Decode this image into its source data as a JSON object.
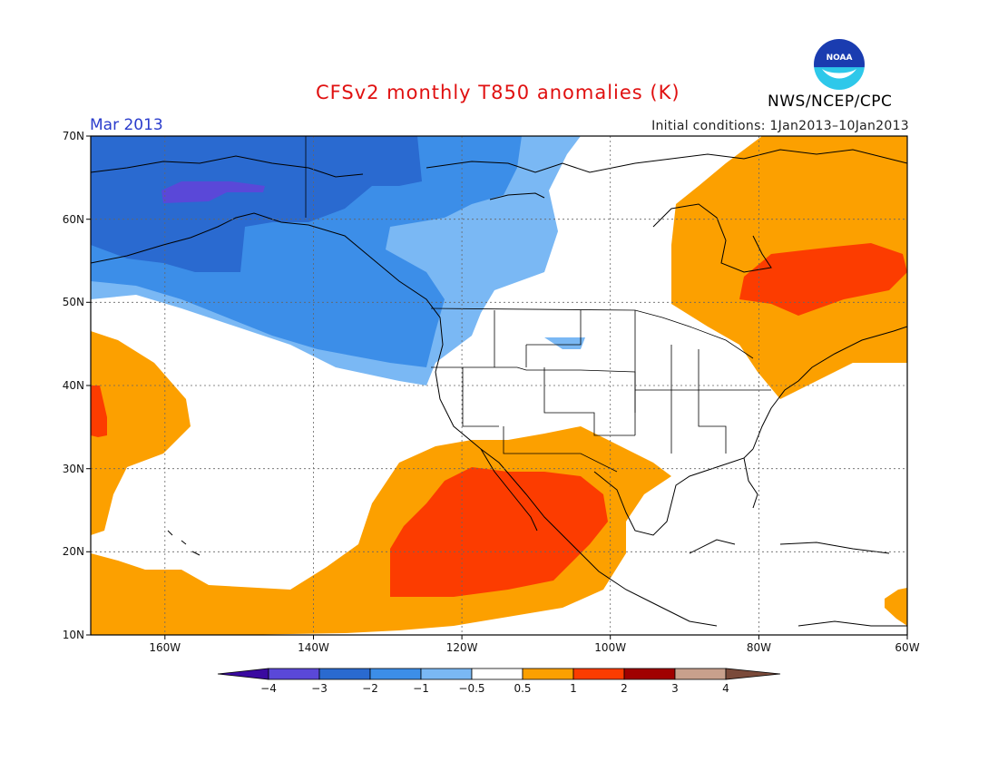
{
  "title": "CFSv2 monthly T850 anomalies (K)",
  "period": "Mar 2013",
  "initial_conditions": "Initial conditions: 1Jan2013–10Jan2013",
  "agency": "NWS/NCEP/CPC",
  "logo_text": "NOAA",
  "lat_labels": [
    "70N",
    "60N",
    "50N",
    "40N",
    "30N",
    "20N",
    "10N"
  ],
  "lon_labels": [
    "160W",
    "140W",
    "120W",
    "100W",
    "80W",
    "60W"
  ],
  "colorbar": {
    "colors": [
      "#3a0aa0",
      "#5a48d8",
      "#2a6ad0",
      "#3c8ee8",
      "#7ab8f4",
      "#ffffff",
      "#fca000",
      "#fc3c00",
      "#a00000",
      "#c8a08c",
      "#7a4a3a"
    ],
    "labels": [
      "−4",
      "−3",
      "−2",
      "−1",
      "−0.5",
      "0.5",
      "1",
      "2",
      "3",
      "4"
    ]
  },
  "colors": {
    "neg3": "#2a6ad0",
    "neg2": "#3c8ee8",
    "neg1": "#7ab8f4",
    "neg4": "#5a48d8",
    "pos05": "#fca000",
    "pos1": "#fc3c00"
  }
}
